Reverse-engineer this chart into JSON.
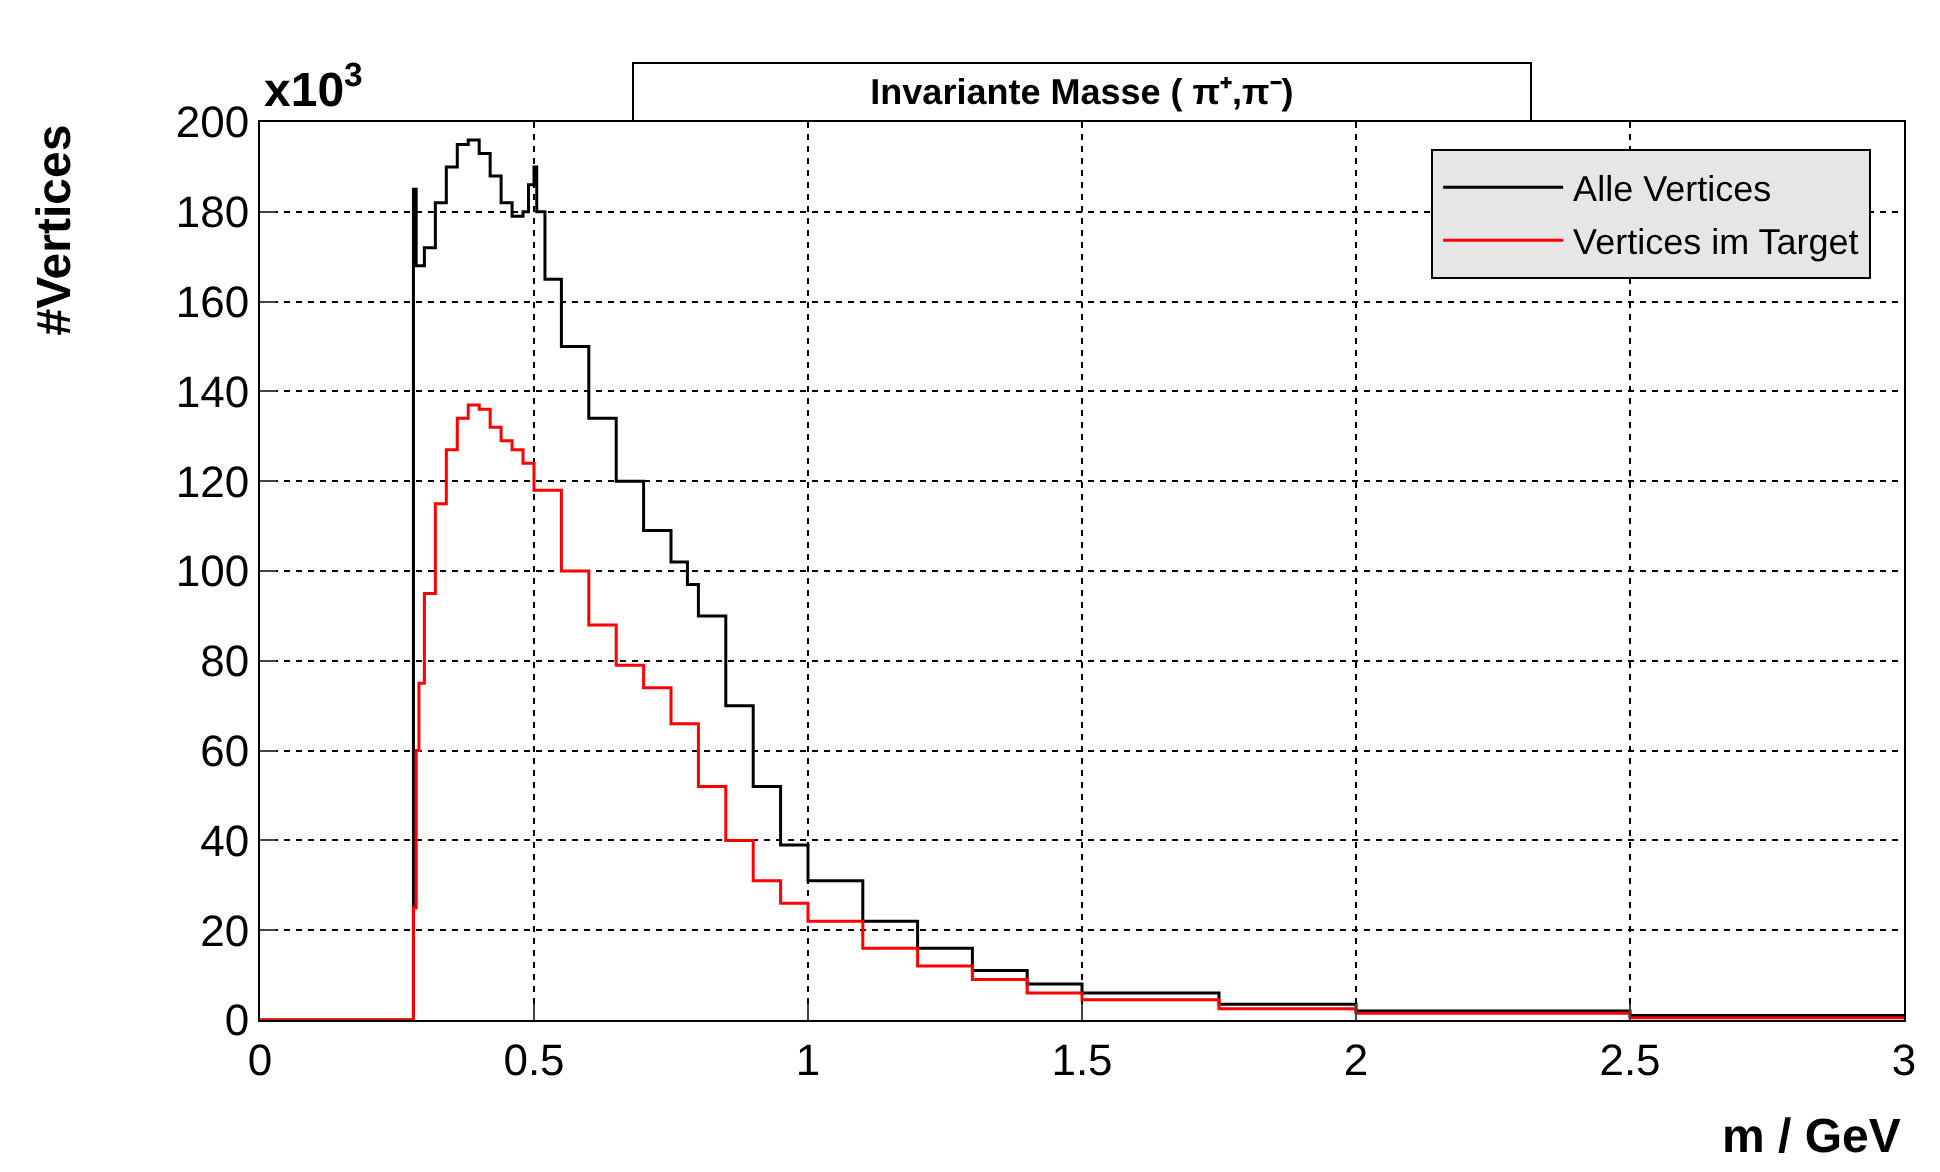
{
  "chart_data": {
    "type": "step",
    "title": "Invariante Masse ( π⁺,π⁻)",
    "xlabel": "m / GeV",
    "ylabel": "#Vertices",
    "annotations": [
      "x10$^{3}$"
    ],
    "xlim": [
      0,
      3
    ],
    "xticks": [
      0,
      0.5,
      1,
      1.5,
      2,
      2.5,
      3
    ],
    "ylim": [
      0,
      200
    ],
    "yticks": [
      0,
      20,
      40,
      60,
      80,
      100,
      120,
      140,
      160,
      180,
      200
    ],
    "grid": true,
    "legend": "top right",
    "marker": "none",
    "line_style": "solid",
    "series": [
      {
        "name": "Alle Vertices",
        "color": "#000000",
        "x": [
          0,
          0.27,
          0.28,
          0.285,
          0.3,
          0.32,
          0.34,
          0.36,
          0.38,
          0.4,
          0.42,
          0.44,
          0.46,
          0.48,
          0.49,
          0.5,
          0.505,
          0.52,
          0.55,
          0.6,
          0.65,
          0.7,
          0.75,
          0.78,
          0.8,
          0.85,
          0.9,
          0.95,
          1.0,
          1.1,
          1.2,
          1.3,
          1.4,
          1.5,
          1.75,
          2.0,
          2.5,
          3.0
        ],
        "values": [
          0,
          0,
          185,
          168,
          172,
          182,
          190,
          195,
          196,
          193,
          188,
          182,
          179,
          180,
          186,
          190,
          180,
          165,
          150,
          134,
          120,
          109,
          102,
          97,
          90,
          70,
          52,
          39,
          31,
          22,
          16,
          11,
          8,
          6,
          3.5,
          2,
          1,
          0.5
        ]
      },
      {
        "name": "Vertices im Target",
        "color": "#ff0000",
        "x": [
          0,
          0.27,
          0.28,
          0.285,
          0.29,
          0.3,
          0.32,
          0.34,
          0.36,
          0.38,
          0.4,
          0.42,
          0.44,
          0.46,
          0.48,
          0.5,
          0.55,
          0.6,
          0.65,
          0.7,
          0.75,
          0.8,
          0.85,
          0.9,
          0.95,
          1.0,
          1.1,
          1.2,
          1.3,
          1.4,
          1.5,
          1.75,
          2.0,
          2.5,
          3.0
        ],
        "values": [
          0,
          0,
          25,
          60,
          75,
          95,
          115,
          127,
          134,
          137,
          136,
          132,
          129,
          127,
          124,
          118,
          100,
          88,
          79,
          74,
          66,
          52,
          40,
          31,
          26,
          22,
          16,
          12,
          9,
          6,
          4.5,
          2.5,
          1.5,
          0.5,
          0.2
        ]
      }
    ]
  }
}
